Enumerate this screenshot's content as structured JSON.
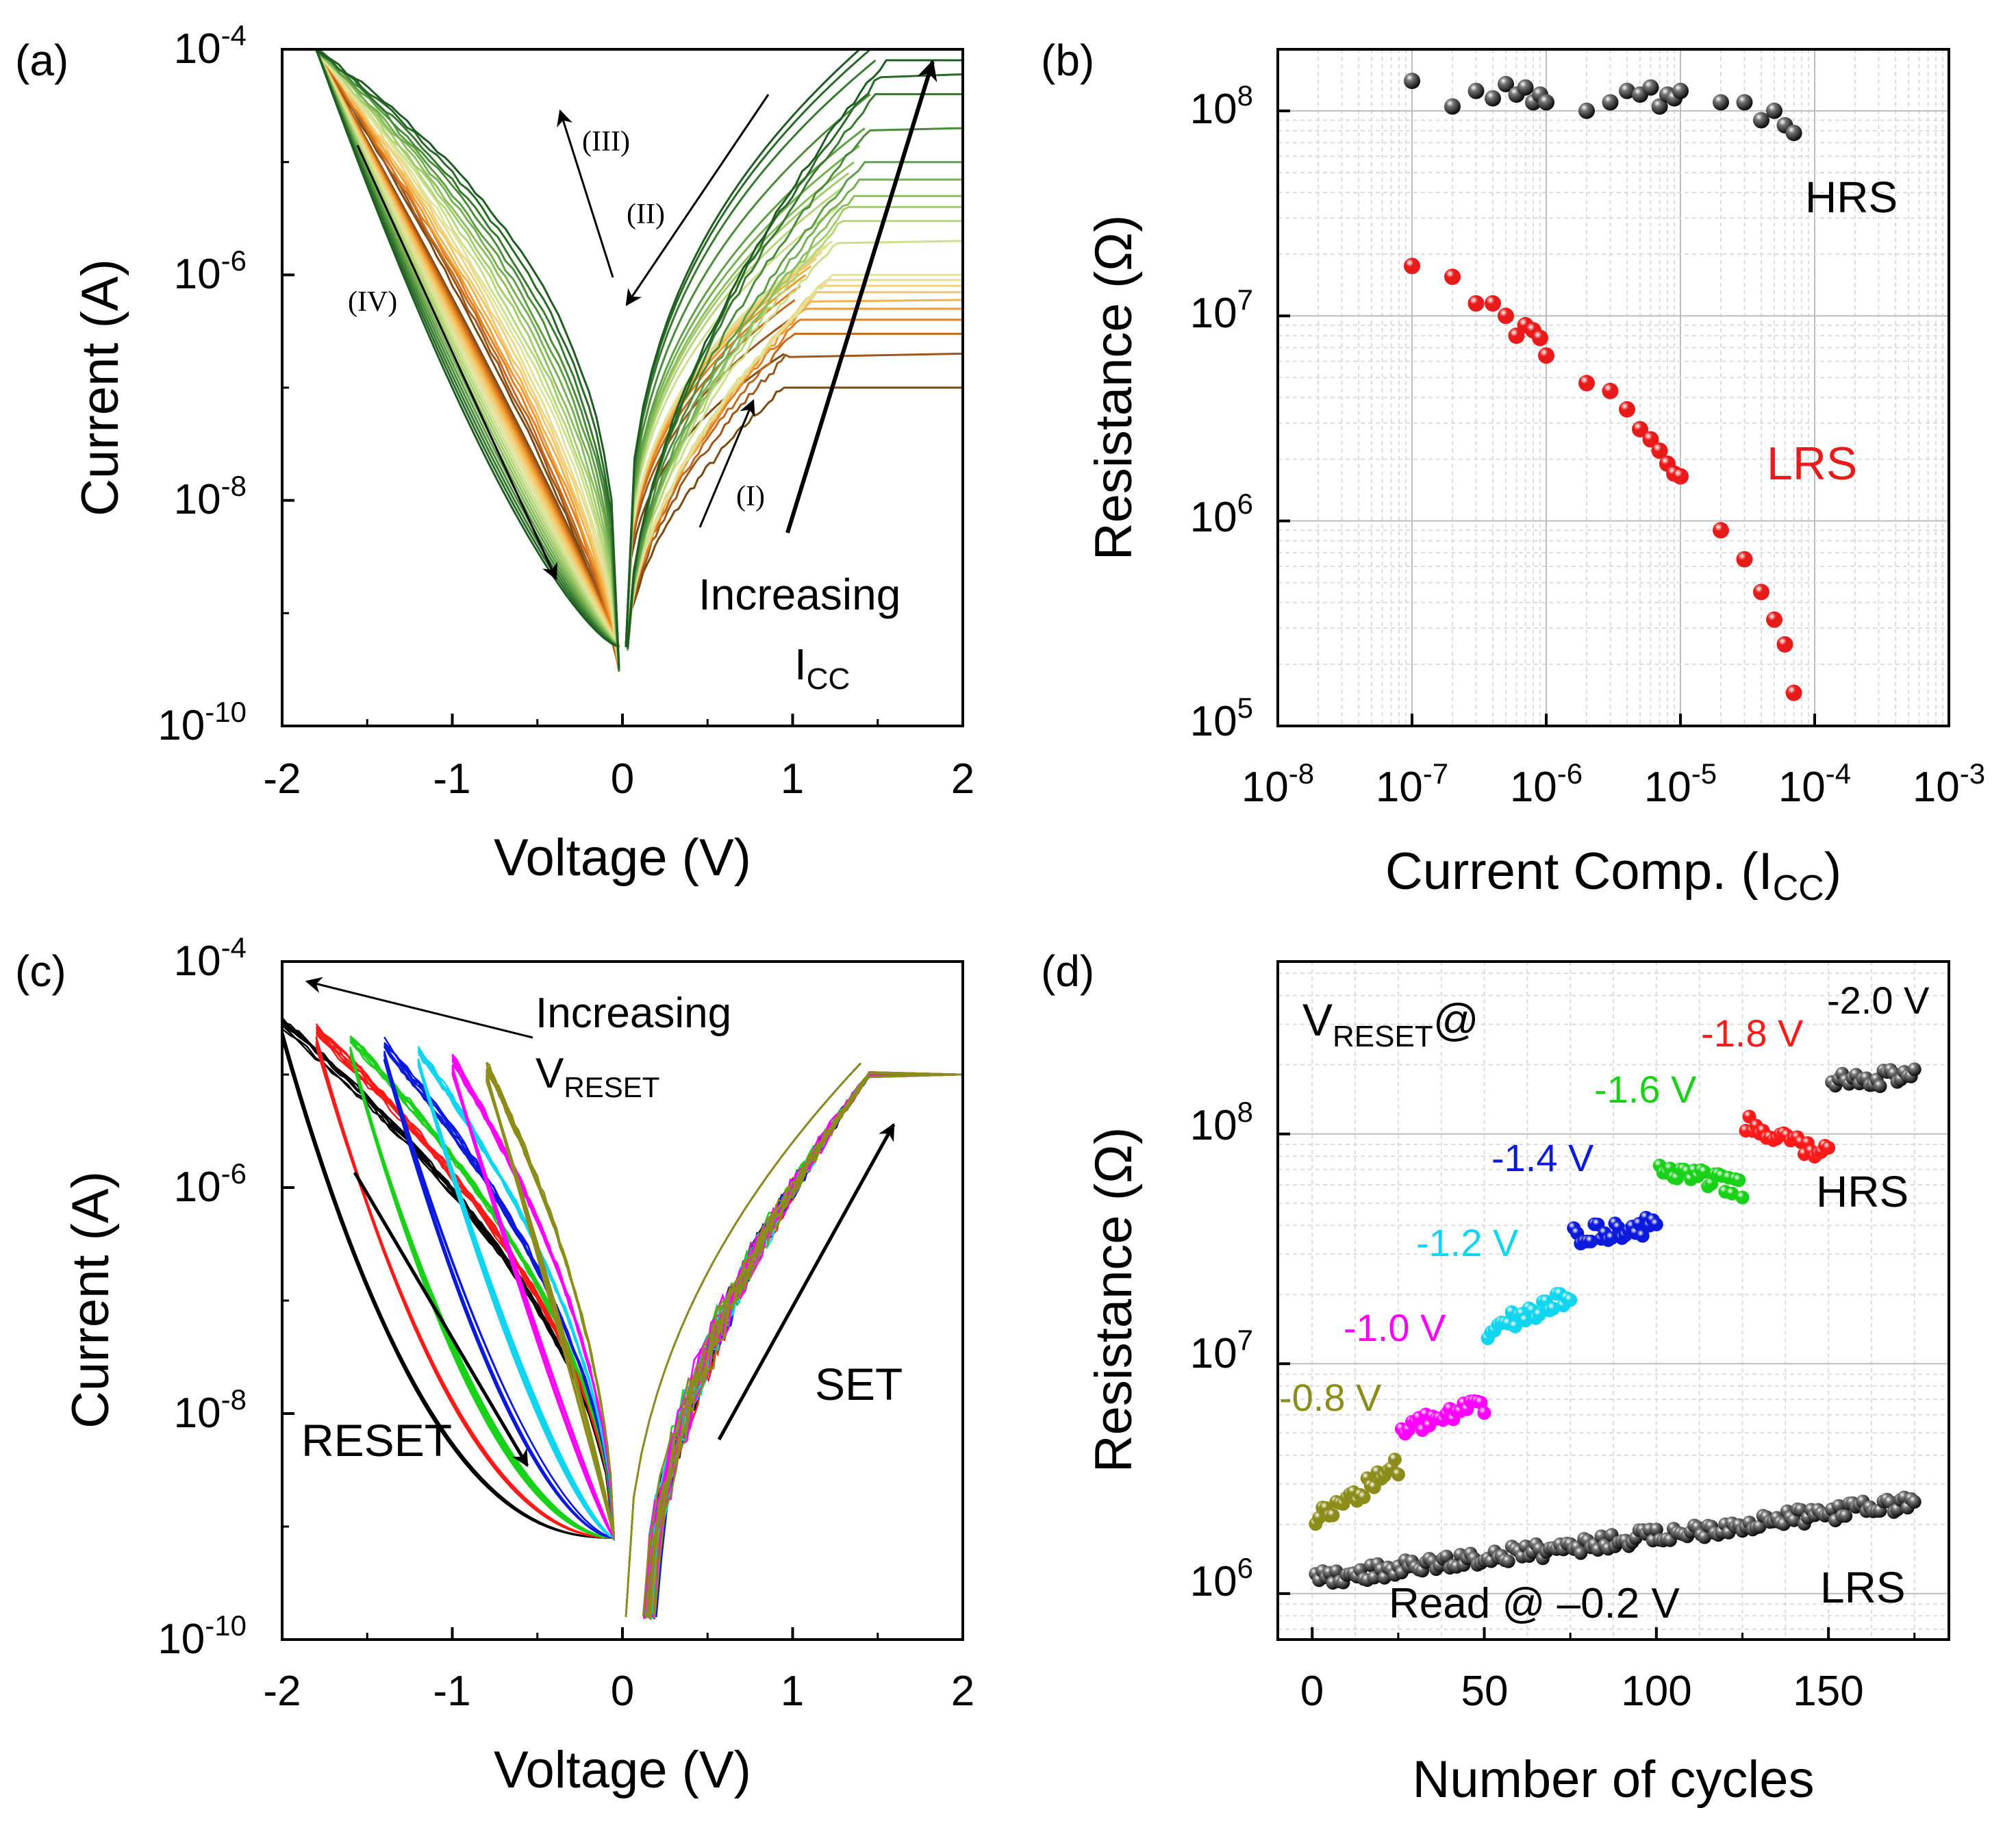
{
  "colors": {
    "seq_a": [
      "#7a4a10",
      "#a0561a",
      "#c46a1c",
      "#e07e20",
      "#ee9a30",
      "#f2b24a",
      "#f2c66a",
      "#efd27e",
      "#e8dc8a",
      "#dfe3a0",
      "#cbe08a",
      "#b7d67a",
      "#a2cb6c",
      "#8cbe5e",
      "#76b052",
      "#5f9f46",
      "#4a8c3a",
      "#377a30",
      "#2a6a28",
      "#1e5c22"
    ],
    "c_series": [
      "#000000",
      "#ff1a1a",
      "#1ad11a",
      "#0b1adb",
      "#10d5ee",
      "#ff00ff",
      "#8c8c1a"
    ],
    "hrs_black": "#1a1a1a",
    "lrs_red": "#e81a1a"
  },
  "panels": [
    {
      "id": "a",
      "label": "(a)",
      "chart_data": {
        "type": "line",
        "xlabel": "Voltage (V)",
        "ylabel": "Current (A)",
        "xlim": [
          -2,
          2
        ],
        "ylim_log10": [
          -10,
          -4
        ],
        "xticks": [
          "-2",
          "-1",
          "0",
          "1",
          "2"
        ],
        "yticks": [
          {
            "base": "10",
            "exp": "-4"
          },
          {
            "base": "10",
            "exp": "-6"
          },
          {
            "base": "10",
            "exp": "-8"
          },
          {
            "base": "10",
            "exp": "-10"
          }
        ],
        "series_note": "I-V sweeps at increasing compliance current; compliance levels (A)",
        "compliance_levels": [
          1e-07,
          2e-07,
          3e-07,
          4e-07,
          5e-07,
          6e-07,
          7e-07,
          8e-07,
          9e-07,
          1e-06,
          2e-06,
          3e-06,
          4e-06,
          5e-06,
          7e-06,
          1e-05,
          2e-05,
          4e-05,
          6e-05,
          8e-05
        ],
        "annotations": {
          "i": "(I)",
          "ii": "(II)",
          "iii": "(III)",
          "iv": "(IV)",
          "increasing": "Increasing",
          "icc_base": "I",
          "icc_sub": "CC"
        }
      }
    },
    {
      "id": "b",
      "label": "(b)",
      "chart_data": {
        "type": "scatter",
        "xlabel_main": "Current Comp. (I",
        "xlabel_sub": "CC",
        "xlabel_end": ")",
        "ylabel": "Resistance (Ω)",
        "xlim_log10": [
          -8,
          -3
        ],
        "ylim_log10": [
          5,
          8.3
        ],
        "xticks": [
          {
            "base": "10",
            "exp": "-8"
          },
          {
            "base": "10",
            "exp": "-7"
          },
          {
            "base": "10",
            "exp": "-6"
          },
          {
            "base": "10",
            "exp": "-5"
          },
          {
            "base": "10",
            "exp": "-4"
          },
          {
            "base": "10",
            "exp": "-3"
          }
        ],
        "yticks": [
          {
            "base": "10",
            "exp": "8"
          },
          {
            "base": "10",
            "exp": "7"
          },
          {
            "base": "10",
            "exp": "6"
          },
          {
            "base": "10",
            "exp": "5"
          }
        ],
        "series": [
          {
            "name": "HRS",
            "x": [
              1e-07,
              2e-07,
              3e-07,
              4e-07,
              5e-07,
              6e-07,
              7e-07,
              8e-07,
              9e-07,
              1e-06,
              2e-06,
              3e-06,
              4e-06,
              5e-06,
              6e-06,
              7e-06,
              8e-06,
              9e-06,
              1e-05,
              2e-05,
              3e-05,
              4e-05,
              5e-05,
              6e-05,
              7e-05
            ],
            "y": [
              140000000.0,
              105000000.0,
              125000000.0,
              115000000.0,
              135000000.0,
              120000000.0,
              130000000.0,
              110000000.0,
              120000000.0,
              110000000.0,
              100000000.0,
              110000000.0,
              125000000.0,
              120000000.0,
              130000000.0,
              105000000.0,
              120000000.0,
              115000000.0,
              125000000.0,
              110000000.0,
              110000000.0,
              90000000.0,
              100000000.0,
              85000000.0,
              78000000.0
            ]
          },
          {
            "name": "LRS",
            "x": [
              1e-07,
              2e-07,
              3e-07,
              4e-07,
              5e-07,
              6e-07,
              7e-07,
              8e-07,
              9e-07,
              1e-06,
              2e-06,
              3e-06,
              4e-06,
              5e-06,
              6e-06,
              7e-06,
              8e-06,
              9e-06,
              1e-05,
              2e-05,
              3e-05,
              4e-05,
              5e-05,
              6e-05,
              7e-05
            ],
            "y": [
              17500000.0,
              15500000.0,
              11500000.0,
              11500000.0,
              10000000.0,
              8000000.0,
              9000000.0,
              8500000.0,
              7800000.0,
              6400000.0,
              4700000.0,
              4300000.0,
              3500000.0,
              2800000.0,
              2500000.0,
              2200000.0,
              1900000.0,
              1700000.0,
              1650000.0,
              900000.0,
              650000.0,
              450000.0,
              330000.0,
              250000.0,
              145000.0
            ]
          }
        ],
        "annotations": {
          "hrs": "HRS",
          "lrs": "LRS"
        }
      }
    },
    {
      "id": "c",
      "label": "(c)",
      "chart_data": {
        "type": "line",
        "xlabel": "Voltage (V)",
        "ylabel": "Current (A)",
        "xlim": [
          -2,
          2
        ],
        "ylim_log10": [
          -10,
          -4
        ],
        "xticks": [
          "-2",
          "-1",
          "0",
          "1",
          "2"
        ],
        "yticks": [
          {
            "base": "10",
            "exp": "-4"
          },
          {
            "base": "10",
            "exp": "-6"
          },
          {
            "base": "10",
            "exp": "-8"
          },
          {
            "base": "10",
            "exp": "-10"
          }
        ],
        "series_note": "Repeated RESET/SET sweeps; RESET stop voltage per series (V)",
        "reset_voltages": [
          -2.0,
          -1.8,
          -1.6,
          -1.4,
          -1.2,
          -1.0,
          -0.8
        ],
        "set_compliance": 1e-05,
        "annotations": {
          "increasing": "Increasing",
          "vreset_base": "V",
          "vreset_sub": "RESET",
          "reset": "RESET",
          "set": "SET"
        }
      }
    },
    {
      "id": "d",
      "label": "(d)",
      "chart_data": {
        "type": "scatter",
        "xlabel": "Number of cycles",
        "ylabel": "Resistance (Ω)",
        "xlim": [
          -10,
          185
        ],
        "ylim_log10": [
          5.8,
          8.75
        ],
        "xticks": [
          "0",
          "50",
          "100",
          "150"
        ],
        "yticks": [
          {
            "base": "10",
            "exp": "8"
          },
          {
            "base": "10",
            "exp": "7"
          },
          {
            "base": "10",
            "exp": "6"
          }
        ],
        "hrs_groups": [
          {
            "label": "-0.8 V",
            "cycles": [
              1,
              25
            ],
            "r_start": 2100000.0,
            "r_end": 3600000.0
          },
          {
            "label": "-1.0 V",
            "cycles": [
              26,
              50
            ],
            "r_start": 5200000.0,
            "r_end": 6500000.0
          },
          {
            "label": "-1.2 V",
            "cycles": [
              51,
              75
            ],
            "r_start": 14000000.0,
            "r_end": 19500000.0
          },
          {
            "label": "-1.4 V",
            "cycles": [
              76,
              100
            ],
            "r_start": 36000000.0,
            "r_end": 40000000.0
          },
          {
            "label": "-1.6 V",
            "cycles": [
              101,
              125
            ],
            "r_start": 70000000.0,
            "r_end": 58000000.0
          },
          {
            "label": "-1.8 V",
            "cycles": [
              126,
              150
            ],
            "r_start": 110000000.0,
            "r_end": 80000000.0
          },
          {
            "label": "-2.0 V",
            "cycles": [
              151,
              175
            ],
            "r_start": 175000000.0,
            "r_end": 175000000.0
          }
        ],
        "lrs_series": {
          "cycles": [
            1,
            175
          ],
          "r_start": 1150000.0,
          "r_end": 2500000.0
        },
        "annotations": {
          "vreset_base": "V",
          "vreset_sub": "RESET",
          "vreset_at": "@",
          "hrs": "HRS",
          "lrs": "LRS",
          "read": "Read @ –0.2 V"
        }
      }
    }
  ]
}
